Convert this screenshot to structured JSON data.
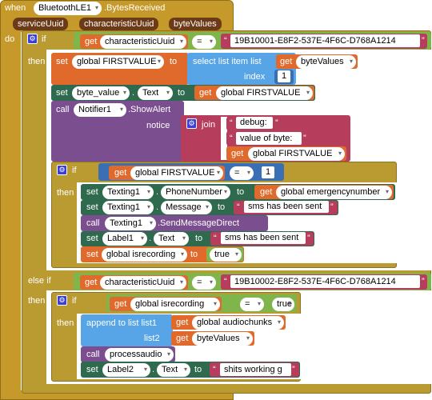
{
  "colors": {
    "event": "#c6992b",
    "control": "#b99b32",
    "logic": "#7fb54a",
    "variable": "#e06a2b",
    "text": "#b63d5c",
    "list": "#57a4e6",
    "math": "#3a6fb3",
    "component": "#2f6a4e",
    "method": "#7a4e8f"
  },
  "event": {
    "when": "when",
    "component": "BluetoothLE1",
    "name": ".BytesReceived",
    "params": [
      "serviceUuid",
      "characteristicUuid",
      "byteValues"
    ],
    "do": "do"
  },
  "if1": {
    "if": "if",
    "get": "get",
    "var": "characteristicUuid",
    "op": "=",
    "uuid": "19B10001-E8F2-537E-4F6C-D768A1214",
    "then": "then"
  },
  "set_first": {
    "set": "set",
    "var": "global FIRSTVALUE",
    "to": "to",
    "select": "select list item  list",
    "get": "get",
    "list_var": "byteValues",
    "index": "index",
    "index_val": "1"
  },
  "set_byte": {
    "set": "set",
    "comp": "byte_value",
    "prop": "Text",
    "dot": ".",
    "to": "to",
    "get": "get",
    "var": "global FIRSTVALUE"
  },
  "notifier": {
    "call": "call",
    "comp": "Notifier1",
    "method": ".ShowAlert",
    "notice": "notice",
    "join": "join",
    "s1": "debug:",
    "s2": "value of byte:",
    "get": "get",
    "var": "global FIRSTVALUE"
  },
  "if2": {
    "if": "if",
    "get": "get",
    "var": "global FIRSTVALUE",
    "op": "=",
    "num": "1",
    "then": "then"
  },
  "texting_phone": {
    "set": "set",
    "comp": "Texting1",
    "prop": "PhoneNumber",
    "to": "to",
    "get": "get",
    "var": "global emergencynumber"
  },
  "texting_msg": {
    "set": "set",
    "comp": "Texting1",
    "prop": "Message",
    "to": "to",
    "str": "sms has been sent"
  },
  "texting_send": {
    "call": "call",
    "comp": "Texting1",
    "method": ".SendMessageDirect"
  },
  "label1": {
    "set": "set",
    "comp": "Label1",
    "prop": "Text",
    "to": "to",
    "str": "sms has been sent"
  },
  "set_recording": {
    "set": "set",
    "var": "global isrecording",
    "to": "to",
    "val": "true"
  },
  "elseif": {
    "label": "else if",
    "get": "get",
    "var": "characteristicUuid",
    "op": "=",
    "uuid": "19B10002-E8F2-537E-4F6C-D768A1214",
    "then": "then"
  },
  "if3": {
    "if": "if",
    "get": "get",
    "var": "global isrecording",
    "op": "=",
    "val": "true",
    "then": "then"
  },
  "append": {
    "label": "append to list  list1",
    "get": "get",
    "var1": "global audiochunks",
    "list2": "list2",
    "var2": "byteValues"
  },
  "processaudio": {
    "call": "call",
    "name": "processaudio"
  },
  "label2": {
    "set": "set",
    "comp": "Label2",
    "prop": "Text",
    "to": "to",
    "str": "shits working g"
  }
}
